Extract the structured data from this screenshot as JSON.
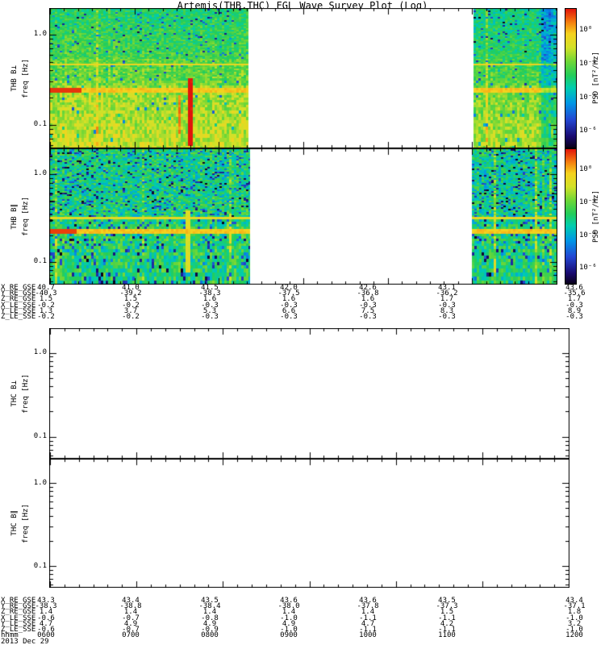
{
  "title": "Artemis(THB,THC) FGL Wave Survey Plot (Log)",
  "panels": [
    {
      "id": "thb-bperp",
      "name_label": "THB B⊥",
      "unit_label": "freq [Hz]",
      "yticks": [
        "1.0",
        "0.1"
      ],
      "has_colorbar": true
    },
    {
      "id": "thb-bpar",
      "name_label": "THB B∥",
      "unit_label": "freq [Hz]",
      "yticks": [
        "1.0",
        "0.1"
      ],
      "has_colorbar": true
    },
    {
      "id": "thc-bperp",
      "name_label": "THC B⊥",
      "unit_label": "freq [Hz]",
      "yticks": [
        "1.0",
        "0.1"
      ],
      "has_colorbar": false
    },
    {
      "id": "thc-bpar",
      "name_label": "THC B∥",
      "unit_label": "freq [Hz]",
      "yticks": [
        "1.0",
        "0.1"
      ],
      "has_colorbar": false
    }
  ],
  "colorbar": {
    "ticks": [
      "10⁰",
      "10⁻²",
      "10⁻⁴",
      "10⁻⁶"
    ],
    "label": "PSD [nT²/Hz]"
  },
  "axis_blocks": [
    {
      "id": "thb-ephemeris",
      "rows": [
        {
          "label": "X_RE_GSE",
          "values": [
            "40.7",
            "41.0",
            "41.5",
            "42.0",
            "42.6",
            "43.1",
            "43.6"
          ]
        },
        {
          "label": "Y_RE_GSE",
          "values": [
            "-40.3",
            "-39.2",
            "-38.3",
            "-37.5",
            "-36.8",
            "-36.2",
            "-35.6"
          ]
        },
        {
          "label": "Z_RE_GSE",
          "values": [
            "1.5",
            "1.5",
            "1.6",
            "1.6",
            "1.6",
            "1.7",
            "1.7"
          ]
        },
        {
          "label": "X_LE_SSE",
          "values": [
            "-0.2",
            "-0.2",
            "-0.3",
            "-0.3",
            "-0.3",
            "-0.3",
            "-0.3"
          ]
        },
        {
          "label": "Y_LE_SSE",
          "values": [
            "1.3",
            "3.7",
            "5.3",
            "6.6",
            "7.5",
            "8.3",
            "8.9"
          ]
        },
        {
          "label": "Z_LE_SSE",
          "values": [
            "-0.2",
            "-0.2",
            "-0.3",
            "-0.3",
            "-0.3",
            "-0.3",
            "-0.3"
          ]
        }
      ]
    },
    {
      "id": "thc-ephemeris",
      "rows": [
        {
          "label": "X_RE_GSE",
          "values": [
            "43.3",
            "43.4",
            "43.5",
            "43.6",
            "43.6",
            "43.5",
            "43.4"
          ]
        },
        {
          "label": "Y_RE_GSE",
          "values": [
            "-38.3",
            "-38.8",
            "-38.4",
            "-38.0",
            "-37.8",
            "-37.3",
            "-37.1"
          ]
        },
        {
          "label": "Z_RE_GSE",
          "values": [
            "1.4",
            "1.4",
            "1.4",
            "1.4",
            "1.4",
            "1.5",
            "1.8"
          ]
        },
        {
          "label": "X_LE_SSE",
          "values": [
            "-0.6",
            "-0.7",
            "-0.8",
            "-1.0",
            "-1.1",
            "-1.1",
            "-1.0"
          ]
        },
        {
          "label": "Y_LE_SSE",
          "values": [
            "4.7",
            "4.9",
            "4.9",
            "4.9",
            "4.7",
            "4.2",
            "3.2"
          ]
        },
        {
          "label": "Z_LE_SSE",
          "values": [
            "-0.6",
            "-0.7",
            "-0.9",
            "-1.0",
            "-1.1",
            "-1.1",
            "-1.0"
          ]
        }
      ],
      "time_label": "hhmm",
      "times": [
        "0600",
        "0700",
        "0800",
        "0900",
        "1000",
        "1100",
        "1200"
      ],
      "date": "2013 Dec 29"
    }
  ],
  "chart_data": {
    "type": "heatmap",
    "title": "Artemis(THB,THC) FGL Wave Survey Plot (Log)",
    "x_axis": {
      "label": "hhmm",
      "ticks": [
        "0600",
        "0700",
        "0800",
        "0900",
        "1000",
        "1100",
        "1200"
      ],
      "date": "2013 Dec 29"
    },
    "y_axis": {
      "label": "freq [Hz]",
      "scale": "log",
      "range": [
        0.056,
        1.93
      ],
      "major_ticks": [
        "1.0",
        "0.1"
      ]
    },
    "z_axis": {
      "label": "PSD [nT²/Hz]",
      "scale": "log",
      "colorbar_ticks": [
        "10⁰",
        "10⁻²",
        "10⁻⁴",
        "10⁻⁶"
      ]
    },
    "colormap": [
      [
        0.0,
        [
          10,
          0,
          25
        ]
      ],
      [
        0.08,
        [
          25,
          10,
          112
        ]
      ],
      [
        0.2,
        [
          35,
          70,
          210
        ]
      ],
      [
        0.32,
        [
          0,
          150,
          230
        ]
      ],
      [
        0.43,
        [
          0,
          205,
          175
        ]
      ],
      [
        0.52,
        [
          35,
          205,
          90
        ]
      ],
      [
        0.62,
        [
          110,
          215,
          55
        ]
      ],
      [
        0.72,
        [
          210,
          225,
          40
        ]
      ],
      [
        0.82,
        [
          245,
          210,
          30
        ]
      ],
      [
        0.9,
        [
          245,
          130,
          15
        ]
      ],
      [
        1.0,
        [
          225,
          20,
          10
        ]
      ]
    ],
    "panels": [
      {
        "name": "THB B-perp spectrogram",
        "has_data": true,
        "data_interval_fractions": [
          [
            0,
            0.392
          ],
          [
            0.836,
            1.0
          ]
        ],
        "paint": {
          "seed": 11,
          "chunks": [
            [
              0,
              0.392
            ],
            [
              0.836,
              1.0
            ]
          ],
          "chunk_shift": [
            0,
            -0.04
          ],
          "base_top": 0.54,
          "base_bottom": 0.68,
          "noise": 0.09,
          "spk": 0.05,
          "spk_top": true,
          "col_prob": 0.06,
          "col_boost": 0.1,
          "hlines": [
            {
              "fy": 0.39,
              "h": 1,
              "v": 0.8
            },
            {
              "fy": 0.576,
              "h": 2,
              "v": 0.83
            }
          ],
          "blob": {
            "x0": 0.0,
            "x1": 0.06,
            "fy": 0.576,
            "h": 3,
            "v": 0.97
          },
          "vstreaks": [
            {
              "x": 0.275,
              "fy0": 0.5,
              "fy1": 0.96,
              "dv": 0.3
            },
            {
              "x": 0.253,
              "fy0": 0.62,
              "fy1": 0.9,
              "dv": 0.18
            }
          ],
          "right_cool": {
            "x": 0.965,
            "dv": 0.2
          }
        }
      },
      {
        "name": "THB B-parallel spectrogram",
        "has_data": true,
        "data_interval_fractions": [
          [
            0,
            0.395
          ],
          [
            0.833,
            1.0
          ]
        ],
        "paint": {
          "seed": 23,
          "chunks": [
            [
              0,
              0.395
            ],
            [
              0.833,
              1.0
            ]
          ],
          "chunk_shift": [
            0,
            -0.02
          ],
          "base_top": 0.52,
          "base_bottom": 0.46,
          "noise": 0.13,
          "spk": 0.12,
          "spk_top": false,
          "col_prob": 0.07,
          "col_boost": 0.14,
          "hlines": [
            {
              "fy": 0.5,
              "h": 1,
              "v": 0.78
            },
            {
              "fy": 0.6,
              "h": 2,
              "v": 0.83
            }
          ],
          "blob": {
            "x0": 0.0,
            "x1": 0.05,
            "fy": 0.6,
            "h": 3,
            "v": 0.96
          },
          "vstreaks": [
            {
              "x": 0.27,
              "fy0": 0.45,
              "fy1": 0.9,
              "dv": 0.25
            }
          ],
          "right_cool": null
        }
      },
      {
        "name": "THC B-perp spectrogram",
        "has_data": false,
        "paint": null
      },
      {
        "name": "THC B-parallel spectrogram",
        "has_data": false,
        "paint": null
      }
    ]
  }
}
